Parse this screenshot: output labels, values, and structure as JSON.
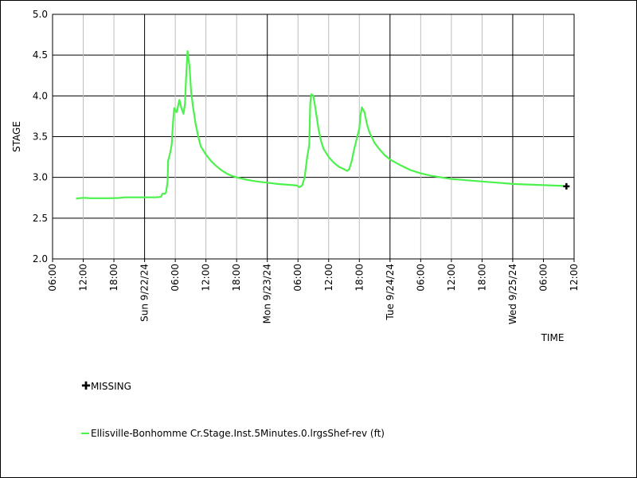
{
  "chart_data": {
    "type": "line",
    "xlabel": "TIME",
    "ylabel": "STAGE",
    "ylim": [
      2.0,
      5.0
    ],
    "yticks": [
      "2.0",
      "2.5",
      "3.0",
      "3.5",
      "4.0",
      "4.5",
      "5.0"
    ],
    "xlim_hours": [
      0,
      102
    ],
    "xticks": [
      {
        "hour": 0,
        "label": "06:00",
        "major": false
      },
      {
        "hour": 6,
        "label": "12:00",
        "major": false
      },
      {
        "hour": 12,
        "label": "18:00",
        "major": false
      },
      {
        "hour": 18,
        "label": "Sun 9/22/24",
        "major": true
      },
      {
        "hour": 24,
        "label": "06:00",
        "major": false
      },
      {
        "hour": 30,
        "label": "12:00",
        "major": false
      },
      {
        "hour": 36,
        "label": "18:00",
        "major": false
      },
      {
        "hour": 42,
        "label": "Mon 9/23/24",
        "major": true
      },
      {
        "hour": 48,
        "label": "06:00",
        "major": false
      },
      {
        "hour": 54,
        "label": "12:00",
        "major": false
      },
      {
        "hour": 60,
        "label": "18:00",
        "major": false
      },
      {
        "hour": 66,
        "label": "Tue 9/24/24",
        "major": true
      },
      {
        "hour": 72,
        "label": "06:00",
        "major": false
      },
      {
        "hour": 78,
        "label": "12:00",
        "major": false
      },
      {
        "hour": 84,
        "label": "18:00",
        "major": false
      },
      {
        "hour": 90,
        "label": "Wed 9/25/24",
        "major": true
      },
      {
        "hour": 96,
        "label": "06:00",
        "major": false
      },
      {
        "hour": 102,
        "label": "12:00",
        "major": false
      }
    ],
    "grid": true,
    "series": [
      {
        "name": "Ellisville-Bonhomme Cr.Stage.Inst.5Minutes.0.lrgsShef-rev (ft)",
        "color": "#4cf24c",
        "points": [
          [
            4.6,
            2.74
          ],
          [
            5.2,
            2.745
          ],
          [
            6,
            2.75
          ],
          [
            6.6,
            2.748
          ],
          [
            7.5,
            2.745
          ],
          [
            9,
            2.745
          ],
          [
            11,
            2.745
          ],
          [
            13,
            2.748
          ],
          [
            14,
            2.755
          ],
          [
            16,
            2.755
          ],
          [
            18,
            2.755
          ],
          [
            20,
            2.755
          ],
          [
            21.2,
            2.76
          ],
          [
            21.5,
            2.8
          ],
          [
            22,
            2.8
          ],
          [
            22.2,
            2.82
          ],
          [
            22.5,
            2.95
          ],
          [
            22.6,
            3.2
          ],
          [
            23,
            3.3
          ],
          [
            23.3,
            3.4
          ],
          [
            23.6,
            3.7
          ],
          [
            23.8,
            3.85
          ],
          [
            24.3,
            3.8
          ],
          [
            24.8,
            3.95
          ],
          [
            25.2,
            3.85
          ],
          [
            25.6,
            3.78
          ],
          [
            25.9,
            3.9
          ],
          [
            26.1,
            4.2
          ],
          [
            26.4,
            4.55
          ],
          [
            26.8,
            4.35
          ],
          [
            27.1,
            4.05
          ],
          [
            27.5,
            3.85
          ],
          [
            28,
            3.65
          ],
          [
            28.5,
            3.5
          ],
          [
            29,
            3.38
          ],
          [
            30,
            3.28
          ],
          [
            31,
            3.2
          ],
          [
            32,
            3.14
          ],
          [
            33,
            3.09
          ],
          [
            34,
            3.05
          ],
          [
            35,
            3.02
          ],
          [
            36,
            3.0
          ],
          [
            38,
            2.97
          ],
          [
            40,
            2.95
          ],
          [
            42,
            2.935
          ],
          [
            44,
            2.92
          ],
          [
            46,
            2.91
          ],
          [
            47,
            2.905
          ],
          [
            47.8,
            2.9
          ],
          [
            48.3,
            2.88
          ],
          [
            48.8,
            2.9
          ],
          [
            49.3,
            3.0
          ],
          [
            49.8,
            3.25
          ],
          [
            50.2,
            3.4
          ],
          [
            50.4,
            3.9
          ],
          [
            50.6,
            4.02
          ],
          [
            51,
            4.0
          ],
          [
            51.4,
            3.85
          ],
          [
            52,
            3.6
          ],
          [
            52.5,
            3.45
          ],
          [
            53,
            3.35
          ],
          [
            54,
            3.25
          ],
          [
            55,
            3.18
          ],
          [
            56,
            3.13
          ],
          [
            57,
            3.1
          ],
          [
            57.6,
            3.08
          ],
          [
            58,
            3.1
          ],
          [
            58.5,
            3.2
          ],
          [
            59,
            3.35
          ],
          [
            59.6,
            3.5
          ],
          [
            60,
            3.6
          ],
          [
            60.2,
            3.75
          ],
          [
            60.5,
            3.86
          ],
          [
            61,
            3.8
          ],
          [
            61.5,
            3.65
          ],
          [
            62,
            3.55
          ],
          [
            63,
            3.42
          ],
          [
            64,
            3.34
          ],
          [
            65,
            3.27
          ],
          [
            66,
            3.22
          ],
          [
            68,
            3.15
          ],
          [
            70,
            3.09
          ],
          [
            72,
            3.05
          ],
          [
            74,
            3.02
          ],
          [
            76,
            3.0
          ],
          [
            78,
            2.98
          ],
          [
            80,
            2.97
          ],
          [
            82,
            2.96
          ],
          [
            84,
            2.95
          ],
          [
            86,
            2.94
          ],
          [
            88,
            2.93
          ],
          [
            90,
            2.92
          ],
          [
            92,
            2.915
          ],
          [
            94,
            2.91
          ],
          [
            96,
            2.905
          ],
          [
            98,
            2.9
          ],
          [
            100,
            2.895
          ]
        ]
      }
    ],
    "missing_points": [
      [
        100.5,
        2.89
      ]
    ],
    "legend": [
      {
        "type": "marker",
        "label": "MISSING"
      },
      {
        "type": "line",
        "label": "Ellisville-Bonhomme Cr.Stage.Inst.5Minutes.0.lrgsShef-rev (ft)",
        "color": "#4cf24c"
      }
    ],
    "legend_position": "bottom"
  }
}
